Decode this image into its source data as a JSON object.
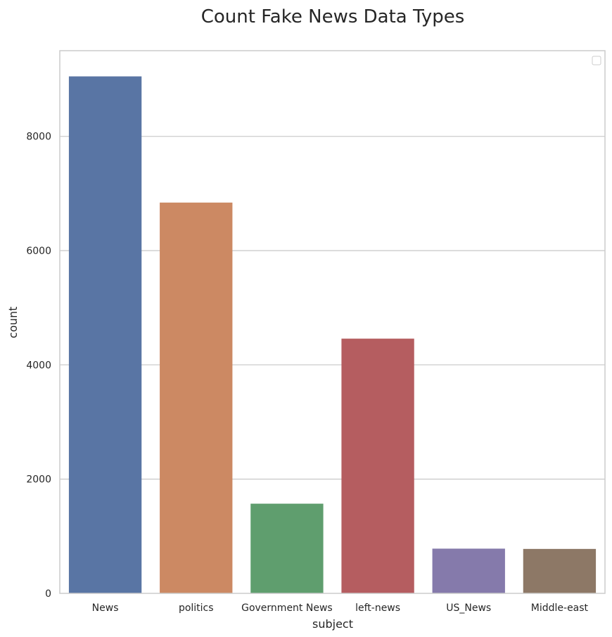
{
  "chart_data": {
    "type": "bar",
    "title": "Count Fake News Data Types",
    "xlabel": "subject",
    "ylabel": "count",
    "categories": [
      "News",
      "politics",
      "Government News",
      "left-news",
      "US_News",
      "Middle-east"
    ],
    "values": [
      9050,
      6841,
      1570,
      4459,
      783,
      778
    ],
    "ylim": [
      0,
      9500
    ],
    "yticks": [
      0,
      2000,
      4000,
      6000,
      8000
    ],
    "colors": [
      "#5975a4",
      "#cc8963",
      "#5f9e6e",
      "#b55d60",
      "#857aab",
      "#8d7866"
    ],
    "grid": "horizontal",
    "legend": "top-right (empty)"
  }
}
